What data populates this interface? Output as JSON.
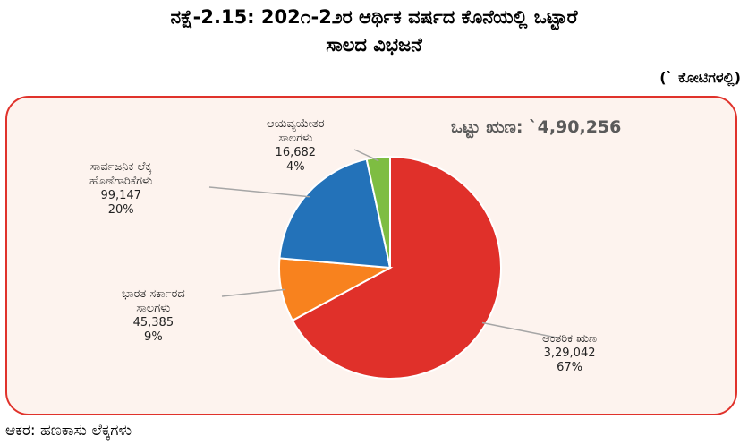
{
  "title_line1": "ನಕ್ಷೆ-2.15: 202೧-2೨ರ ಆರ್ಥಿಕ ವರ್ಷದ ಕೊನೆಯಲ್ಲಿ ಒಟ್ಟಾರೆ",
  "title_line2": "ಸಾಲದ ವಿಭಜನೆ",
  "units": "(` ಕೋಟಿಗಳಲ್ಲಿ)",
  "total_label": "ಒಟ್ಟು ಋಣ: `4,90,256",
  "source": "ಆಕರ: ಹಣಕಾಸು ಲೆಕ್ಕಗಳು",
  "chart_data": {
    "type": "pie",
    "title": "ನಕ್ಷೆ-2.15: 202೧-2೨ರ ಆರ್ಥಿಕ ವರ್ಷದ ಕೊನೆಯಲ್ಲಿ ಒಟ್ಟಾರೆ ಸಾಲದ ವಿಭಜನೆ",
    "total": 490256,
    "slices": [
      {
        "label_lines": [
          "ಆಂತರಿಕ ಋಣ"
        ],
        "value_text": "3,29,042",
        "value": 329042,
        "percent_text": "67%",
        "percent": 67,
        "color": "#e0302a"
      },
      {
        "label_lines": [
          "ಭಾರತ ಸರ್ಕಾರದ",
          "ಸಾಲಗಳು"
        ],
        "value_text": "45,385",
        "value": 45385,
        "percent_text": "9%",
        "percent": 9,
        "color": "#f8821e"
      },
      {
        "label_lines": [
          "ಸಾರ್ವಜನಿಕ ಲೆಕ್ಕ",
          "ಹೊಣೆಗಾರಿಕೆಗಳು"
        ],
        "value_text": "99,147",
        "value": 99147,
        "percent_text": "20%",
        "percent": 20,
        "color": "#2372b9"
      },
      {
        "label_lines": [
          "ಆಯವ್ಯಯೇತರ",
          "ಸಾಲಗಳು"
        ],
        "value_text": "16,682",
        "value": 16682,
        "percent_text": "4%",
        "percent": 4,
        "color": "#7ebd42"
      }
    ]
  }
}
